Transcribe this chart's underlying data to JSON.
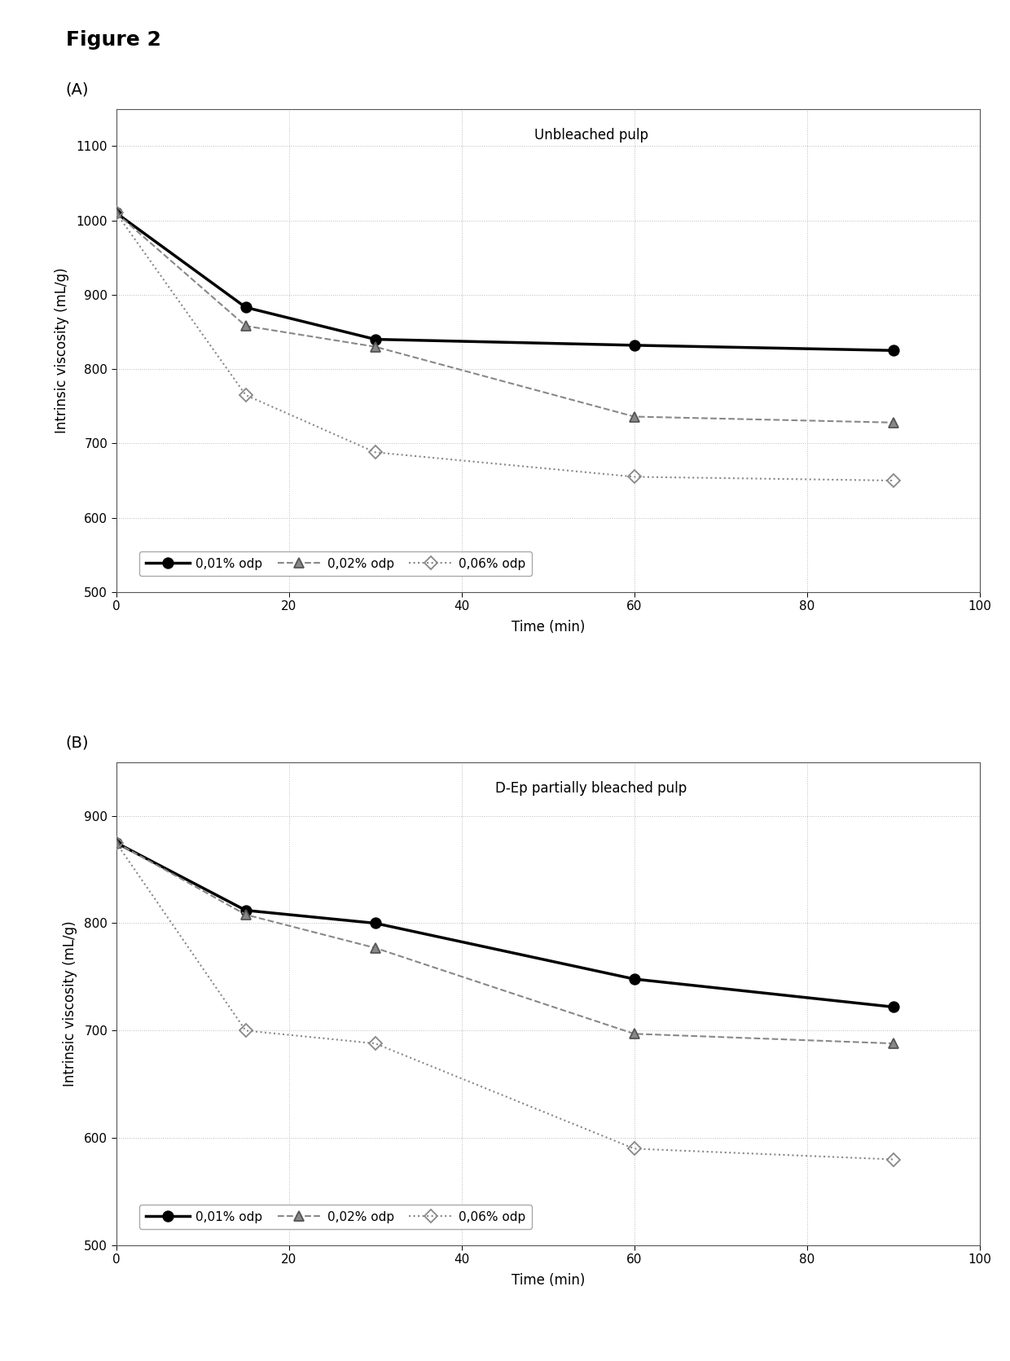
{
  "figure_title": "Figure 2",
  "panel_A": {
    "title": "Unbleached pulp",
    "xlabel": "Time (min)",
    "ylabel": "Intrinsic viscosity (mL/g)",
    "ylim": [
      500,
      1150
    ],
    "xlim": [
      0,
      100
    ],
    "yticks": [
      500,
      600,
      700,
      800,
      900,
      1000,
      1100
    ],
    "xticks": [
      0,
      20,
      40,
      60,
      80,
      100
    ],
    "series": [
      {
        "label": "0,01% odp",
        "x": [
          0,
          15,
          30,
          60,
          90
        ],
        "y": [
          1010,
          883,
          840,
          832,
          825
        ],
        "color": "#000000",
        "linestyle": "solid",
        "linewidth": 2.5,
        "marker": "o",
        "markersize": 9,
        "markerfacecolor": "#000000",
        "markeredgecolor": "#000000"
      },
      {
        "label": "0,02% odp",
        "x": [
          0,
          15,
          30,
          60,
          90
        ],
        "y": [
          1010,
          858,
          830,
          736,
          728
        ],
        "color": "#888888",
        "linestyle": "dashed",
        "linewidth": 1.5,
        "marker": "^",
        "markersize": 8,
        "markerfacecolor": "#888888",
        "markeredgecolor": "#555555"
      },
      {
        "label": "0,06% odp",
        "x": [
          0,
          15,
          30,
          60,
          90
        ],
        "y": [
          1010,
          765,
          688,
          655,
          650
        ],
        "color": "#888888",
        "linestyle": "dotted",
        "linewidth": 1.5,
        "marker": "D",
        "markersize": 8,
        "markerfacecolor": "none",
        "markeredgecolor": "#888888"
      }
    ]
  },
  "panel_B": {
    "title": "D-Ep partially bleached pulp",
    "xlabel": "Time (min)",
    "ylabel": "Intrinsic viscosity (mL/g)",
    "ylim": [
      500,
      950
    ],
    "xlim": [
      0,
      100
    ],
    "yticks": [
      500,
      600,
      700,
      800,
      900
    ],
    "xticks": [
      0,
      20,
      40,
      60,
      80,
      100
    ],
    "series": [
      {
        "label": "0,01% odp",
        "x": [
          0,
          15,
          30,
          60,
          90
        ],
        "y": [
          875,
          812,
          800,
          748,
          722
        ],
        "color": "#000000",
        "linestyle": "solid",
        "linewidth": 2.5,
        "marker": "o",
        "markersize": 9,
        "markerfacecolor": "#000000",
        "markeredgecolor": "#000000"
      },
      {
        "label": "0,02% odp",
        "x": [
          0,
          15,
          30,
          60,
          90
        ],
        "y": [
          875,
          808,
          777,
          697,
          688
        ],
        "color": "#888888",
        "linestyle": "dashed",
        "linewidth": 1.5,
        "marker": "^",
        "markersize": 8,
        "markerfacecolor": "#888888",
        "markeredgecolor": "#555555"
      },
      {
        "label": "0,06% odp",
        "x": [
          0,
          15,
          30,
          60,
          90
        ],
        "y": [
          875,
          700,
          688,
          590,
          580
        ],
        "color": "#888888",
        "linestyle": "dotted",
        "linewidth": 1.5,
        "marker": "D",
        "markersize": 8,
        "markerfacecolor": "none",
        "markeredgecolor": "#888888"
      }
    ]
  },
  "background_color": "#ffffff",
  "grid_color": "#bbbbbb",
  "grid_linestyle": "dotted",
  "grid_linewidth": 0.7,
  "panel_A_label": "(A)",
  "panel_B_label": "(B)"
}
